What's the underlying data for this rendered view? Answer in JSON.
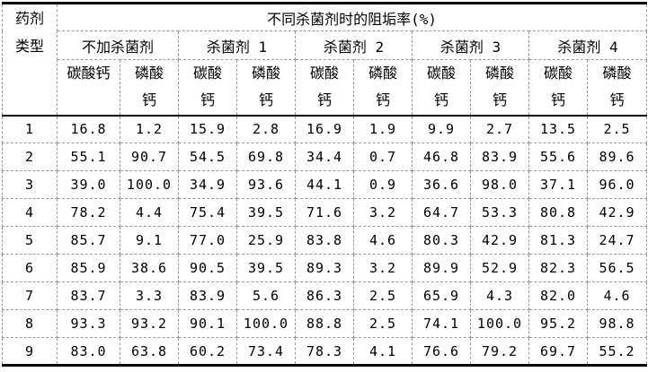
{
  "table": {
    "corner_header": {
      "line1": "药剂",
      "line2": "类型"
    },
    "main_header": "不同杀菌剂时的阻垢率(%)",
    "group_headers": [
      "不加杀菌剂",
      "杀菌剂 1",
      "杀菌剂 2",
      "杀菌剂 3",
      "杀菌剂 4"
    ],
    "sub_headers": [
      {
        "line1": "碳酸钙",
        "line2": ""
      },
      {
        "line1": "磷酸",
        "line2": "钙"
      },
      {
        "line1": "碳酸",
        "line2": "钙"
      },
      {
        "line1": "磷酸",
        "line2": "钙"
      },
      {
        "line1": "碳酸",
        "line2": "钙"
      },
      {
        "line1": "磷酸",
        "line2": "钙"
      },
      {
        "line1": "碳酸",
        "line2": "钙"
      },
      {
        "line1": "磷酸",
        "line2": "钙"
      },
      {
        "line1": "碳酸",
        "line2": "钙"
      },
      {
        "line1": "磷酸",
        "line2": "钙"
      }
    ],
    "rows": [
      {
        "label": "1",
        "values": [
          "16.8",
          "1.2",
          "15.9",
          "2.8",
          "16.9",
          "1.9",
          "9.9",
          "2.7",
          "13.5",
          "2.5"
        ]
      },
      {
        "label": "2",
        "values": [
          "55.1",
          "90.7",
          "54.5",
          "69.8",
          "34.4",
          "0.7",
          "46.8",
          "83.9",
          "55.6",
          "89.6"
        ]
      },
      {
        "label": "3",
        "values": [
          "39.0",
          "100.0",
          "34.9",
          "93.6",
          "44.1",
          "0.9",
          "36.6",
          "98.0",
          "37.1",
          "96.0"
        ]
      },
      {
        "label": "4",
        "values": [
          "78.2",
          "4.4",
          "75.4",
          "39.5",
          "71.6",
          "3.2",
          "64.7",
          "53.3",
          "80.8",
          "42.9"
        ]
      },
      {
        "label": "5",
        "values": [
          "85.7",
          "9.1",
          "77.0",
          "25.9",
          "83.8",
          "4.6",
          "80.3",
          "42.9",
          "81.3",
          "24.7"
        ]
      },
      {
        "label": "6",
        "values": [
          "85.9",
          "38.6",
          "90.5",
          "39.5",
          "89.3",
          "3.2",
          "89.9",
          "52.9",
          "82.3",
          "56.5"
        ]
      },
      {
        "label": "7",
        "values": [
          "83.7",
          "3.3",
          "83.9",
          "5.6",
          "86.3",
          "2.5",
          "65.9",
          "4.3",
          "82.0",
          "4.6"
        ]
      },
      {
        "label": "8",
        "values": [
          "93.3",
          "93.2",
          "90.1",
          "100.0",
          "88.8",
          "2.5",
          "74.1",
          "100.0",
          "95.2",
          "98.8"
        ]
      },
      {
        "label": "9",
        "values": [
          "83.0",
          "63.8",
          "60.2",
          "73.4",
          "78.3",
          "4.1",
          "76.6",
          "79.2",
          "69.7",
          "55.2"
        ]
      }
    ],
    "colors": {
      "border_solid": "#000000",
      "border_dashed": "#9a9a9a",
      "text": "#000000",
      "background": "#ffffff"
    }
  }
}
